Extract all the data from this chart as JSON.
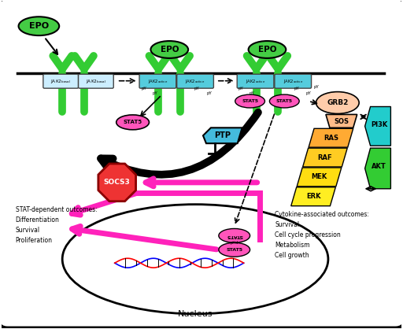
{
  "bg_color": "#ffffff",
  "green_receptor": "#33cc33",
  "green_epo": "#44cc44",
  "cyan_jak": "#55ccdd",
  "pink_stat5": "#ff55bb",
  "red_socs3": "#ee3333",
  "cyan_ptp": "#44bbdd",
  "tan_grb2": "#ffccaa",
  "tan_sos": "#ffbb88",
  "orange_ras": "#ffaa33",
  "yellow_raf": "#ffcc22",
  "yellow_mek": "#ffdd11",
  "yellow_erk": "#ffee22",
  "cyan_pi3k": "#22cccc",
  "green_akt": "#33cc33",
  "magenta_arrow": "#ff22bb",
  "cell_lw": 3.0,
  "nucleus_lw": 2.0,
  "epo_label": "EPO",
  "stat5_label": "STAT5",
  "socs3_label": "SOCS3",
  "ptp_label": "PTP",
  "grb2_label": "GRB2",
  "sos_label": "SOS",
  "ras_label": "RAS",
  "raf_label": "RAF",
  "mek_label": "MEK",
  "erk_label": "ERK",
  "pi3k_label": "PI3K",
  "akt_label": "AKT",
  "nucleus_label": "Nucleus",
  "stat_outcomes": "STAT-dependent outcomes:\nDifferentiation\nSurvival\nProliferation",
  "cytokine_outcomes": "Cytokine-associated outcomes:\nSurvival\nCell cycle progression\nMetabolism\nCell growth"
}
